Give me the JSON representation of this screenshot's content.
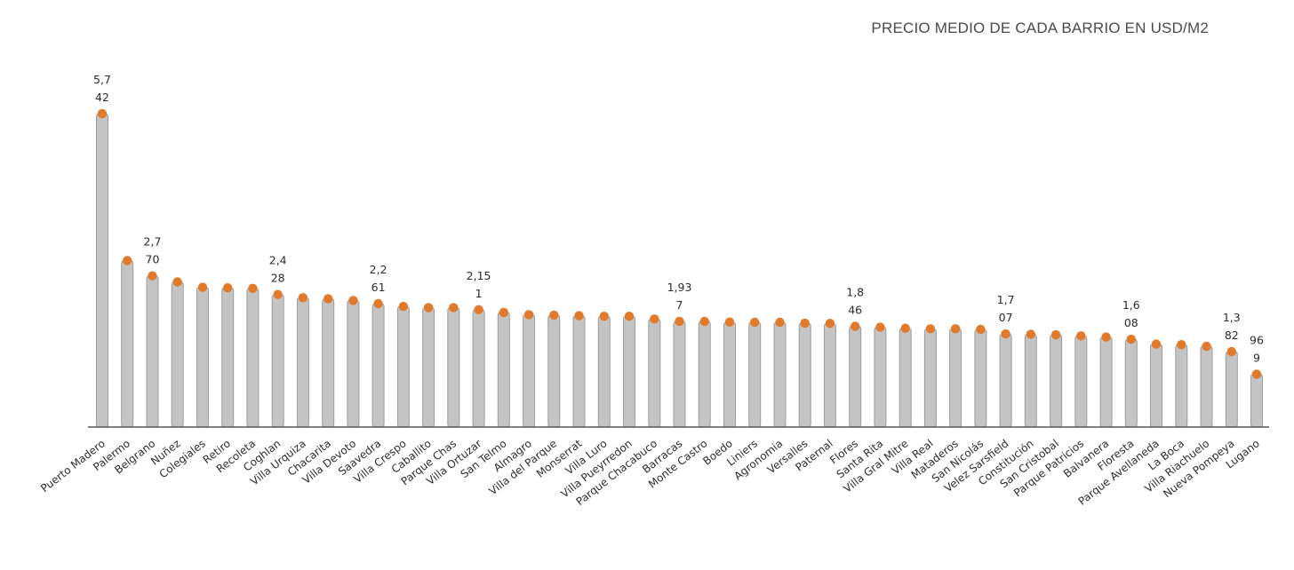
{
  "chart_data": {
    "type": "bar",
    "title": "PRECIO MEDIO DE CADA BARRIO EN USD/M2",
    "xlabel": "",
    "ylabel": "",
    "ylim": [
      0,
      6400
    ],
    "grid": false,
    "legend": "none",
    "colors": {
      "bar": "#c4c4c4",
      "bar_edge": "#9c9c9c",
      "dot": "#e27a2b",
      "axis": "#555555"
    },
    "categories": [
      "Puerto Madero",
      "Palermo",
      "Belgrano",
      "Nuñez",
      "Colegiales",
      "Retiro",
      "Recoleta",
      "Coghlan",
      "Villa Urquiza",
      "Chacarita",
      "Villa Devoto",
      "Saavedra",
      "Villa Crespo",
      "Caballito",
      "Parque Chas",
      "Villa Ortuzar",
      "San Telmo",
      "Almagro",
      "Villa del Parque",
      "Monserrat",
      "Villa Luro",
      "Villa Pueyrredon",
      "Parque Chacabuco",
      "Barracas",
      "Monte Castro",
      "Boedo",
      "Liniers",
      "Agronomia",
      "Versalles",
      "Paternal",
      "Flores",
      "Santa Rita",
      "Villa Gral Mitre",
      "Villa Real",
      "Mataderos",
      "San Nicolás",
      "Velez Sarsfield",
      "Constitución",
      "San Cristobal",
      "Parque Patricios",
      "Balvanera",
      "Floresta",
      "Parque Avellaneda",
      "La Boca",
      "Villa Riachuelo",
      "Nueva Pompeya",
      "Lugano"
    ],
    "values": [
      5742,
      3050,
      2770,
      2660,
      2560,
      2550,
      2540,
      2428,
      2370,
      2350,
      2320,
      2261,
      2210,
      2190,
      2190,
      2151,
      2100,
      2060,
      2050,
      2040,
      2030,
      2030,
      1980,
      1937,
      1935,
      1925,
      1920,
      1920,
      1905,
      1900,
      1846,
      1830,
      1810,
      1800,
      1800,
      1790,
      1707,
      1700,
      1690,
      1670,
      1650,
      1608,
      1520,
      1510,
      1480,
      1382,
      969
    ],
    "data_labels": [
      {
        "index": 0,
        "lines": [
          "5,7",
          "42"
        ]
      },
      {
        "index": 2,
        "lines": [
          "2,7",
          "70"
        ]
      },
      {
        "index": 7,
        "lines": [
          "2,4",
          "28"
        ]
      },
      {
        "index": 11,
        "lines": [
          "2,2",
          "61"
        ]
      },
      {
        "index": 15,
        "lines": [
          "2,15",
          "1"
        ]
      },
      {
        "index": 23,
        "lines": [
          "1,93",
          "7"
        ]
      },
      {
        "index": 30,
        "lines": [
          "1,8",
          "46"
        ]
      },
      {
        "index": 36,
        "lines": [
          "1,7",
          "07"
        ]
      },
      {
        "index": 41,
        "lines": [
          "1,6",
          "08"
        ]
      },
      {
        "index": 45,
        "lines": [
          "1,3",
          "82"
        ]
      },
      {
        "index": 46,
        "lines": [
          "96",
          "9"
        ]
      }
    ]
  }
}
